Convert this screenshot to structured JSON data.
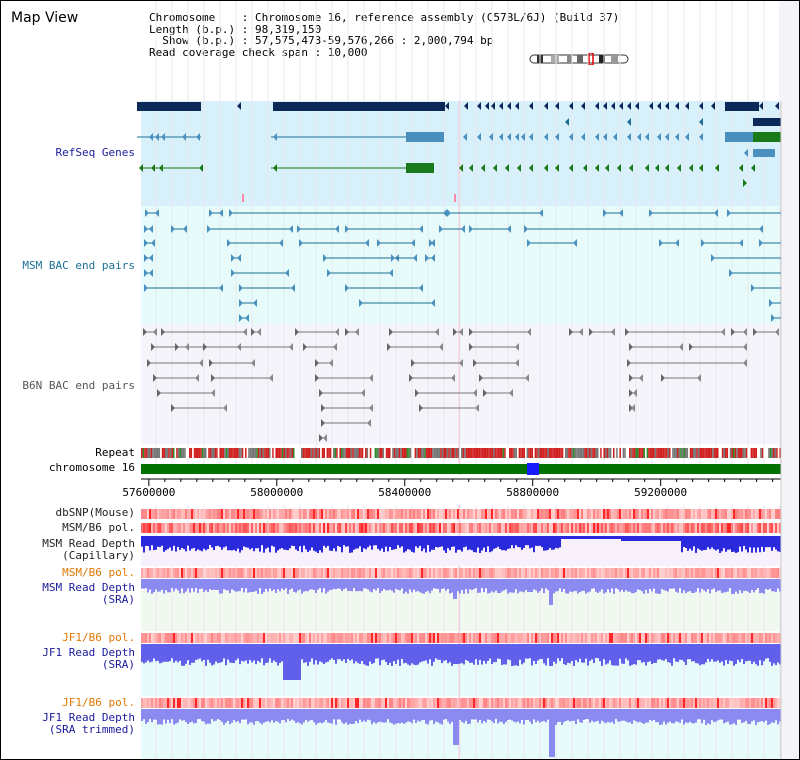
{
  "title": "Map View",
  "header": {
    "chromosome_line": "Chromosome    : Chromosome 16, reference assembly (C57BL/6J) (Build 37)",
    "length_line": "Length (b.p.) : 98,319,150",
    "show_line": "  Show (b.p.) : 57,575,473-59,576,266 : 2,000,794 bp",
    "span_line": "Read coverage check span : 10,000"
  },
  "view": {
    "start_bp": 57575473,
    "end_bp": 59576266
  },
  "tracks": {
    "refseq": "RefSeq Genes",
    "msm_bac": "MSM BAC end pairs",
    "b6n_bac": "B6N BAC end pairs",
    "repeat": "Repeat",
    "chromosome": "chromosome 16",
    "dbsnp": "dbSNP(Mouse)",
    "msm_pol": "MSM/B6 pol.",
    "msm_depth_cap": "MSM Read Depth\n(Capillary)",
    "msm_pol2": "MSM/B6 pol.",
    "msm_depth_sra": "MSM Read Depth\n(SRA)",
    "jf1_pol": "JF1/B6 pol.",
    "jf1_depth_sra": "JF1 Read Depth\n(SRA)",
    "jf1_pol2": "JF1/B6 pol.",
    "jf1_depth_trim": "JF1 Read Depth\n(SRA trimmed)"
  },
  "axis_ticks": [
    {
      "bp": 57600000,
      "label": "57600000"
    },
    {
      "bp": 58000000,
      "label": "58000000"
    },
    {
      "bp": 58400000,
      "label": "58400000"
    },
    {
      "bp": 58800000,
      "label": "58800000"
    },
    {
      "bp": 59200000,
      "label": "59200000"
    }
  ],
  "colors": {
    "refseq_bg": "#d8f0fa",
    "msm_bg": "#e6fbfa",
    "b6n_bg": "#f4f4fa",
    "navy": "#0b2a5a",
    "steel": "#4a90bf",
    "green": "#1a7a1a",
    "teal": "#1b6f96",
    "gray": "#555555",
    "chrom": "#007000",
    "highlight": "#1a1aff",
    "title_blue": "#1a1a9a",
    "orange": "#e07800"
  }
}
